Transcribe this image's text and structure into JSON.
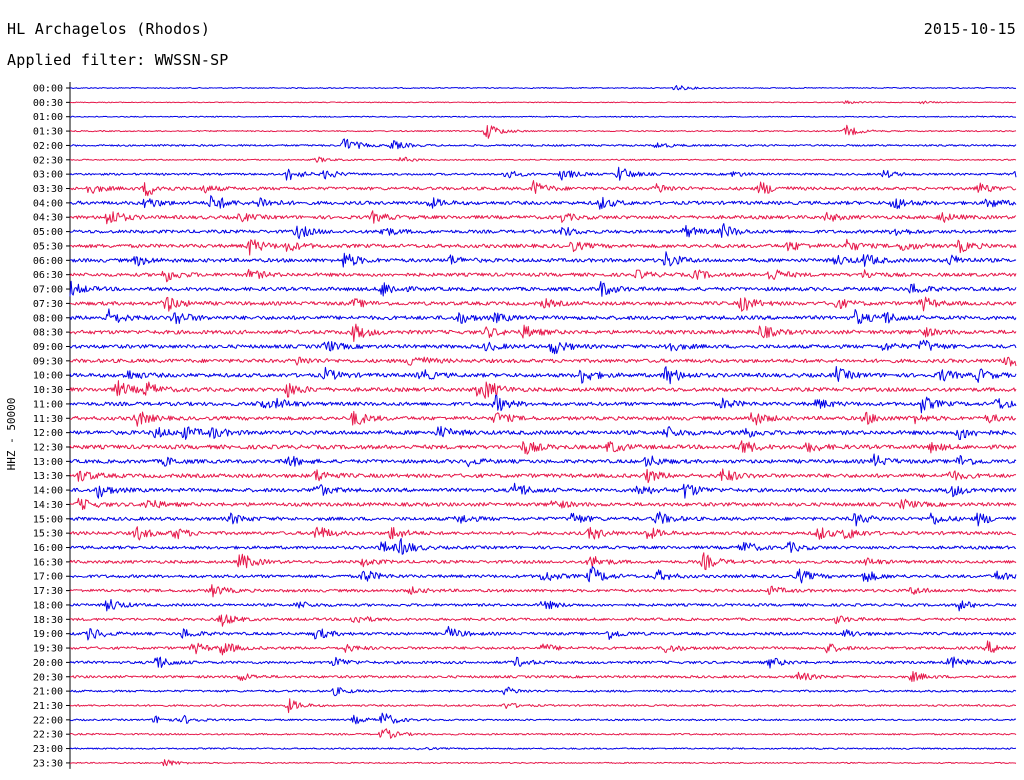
{
  "header": {
    "station": "HL Archagelos (Rhodos)",
    "date": "2015-10-15",
    "filter": "Applied filter: WWSSN-SP"
  },
  "colors": {
    "odd_trace": "#0000e6",
    "even_trace": "#e6194b",
    "axis": "#000000"
  },
  "chart_data": {
    "type": "line",
    "title": "HL Archagelos (Rhodos)",
    "date": "2015-10-15",
    "subtitle": "Applied filter: WWSSN-SP",
    "ylabel": "HHZ - 50000",
    "xlabel": "",
    "grid": false,
    "legend": "none",
    "rows": [
      "00:00",
      "00:30",
      "01:00",
      "01:30",
      "02:00",
      "02:30",
      "03:00",
      "03:30",
      "04:00",
      "04:30",
      "05:00",
      "05:30",
      "06:00",
      "06:30",
      "07:00",
      "07:30",
      "08:00",
      "08:30",
      "09:00",
      "09:30",
      "10:00",
      "10:30",
      "11:00",
      "11:30",
      "12:00",
      "12:30",
      "13:00",
      "13:30",
      "14:00",
      "14:30",
      "15:00",
      "15:30",
      "16:00",
      "16:30",
      "17:00",
      "17:30",
      "18:00",
      "18:30",
      "19:00",
      "19:30",
      "20:00",
      "20:30",
      "21:00",
      "21:30",
      "22:00",
      "22:30",
      "23:00",
      "23:30"
    ],
    "noise_level": [
      0.5,
      0.4,
      0.5,
      0.6,
      0.9,
      0.6,
      1.0,
      1.5,
      1.7,
      1.7,
      1.6,
      1.8,
      1.8,
      1.7,
      1.8,
      1.8,
      1.9,
      1.9,
      1.8,
      1.8,
      1.9,
      1.9,
      1.8,
      1.8,
      2.0,
      2.0,
      1.8,
      1.9,
      1.8,
      1.8,
      1.7,
      1.6,
      1.5,
      1.5,
      1.5,
      1.4,
      1.3,
      1.3,
      1.4,
      1.3,
      1.3,
      1.2,
      1.0,
      0.9,
      0.8,
      0.8,
      0.7,
      0.6
    ],
    "events": [
      [
        [
          0.64,
          3.0
        ]
      ],
      [
        [
          0.82,
          1.6
        ],
        [
          0.9,
          1.4
        ]
      ],
      [
        [
          0.96,
          0.8
        ]
      ],
      [
        [
          0.44,
          9.0
        ],
        [
          0.82,
          6.0
        ]
      ],
      [
        [
          0.29,
          8.0
        ],
        [
          0.34,
          5.0
        ],
        [
          0.62,
          3.0
        ]
      ],
      [
        [
          0.26,
          3.0
        ],
        [
          0.35,
          3.0
        ]
      ],
      [
        [
          0.23,
          7.0
        ],
        [
          0.27,
          5.0
        ],
        [
          0.46,
          4.5
        ],
        [
          0.52,
          6.0
        ],
        [
          0.58,
          8.0
        ],
        [
          0.7,
          3.0
        ],
        [
          0.86,
          4.0
        ],
        [
          1.0,
          6.0
        ]
      ],
      [
        [
          0.02,
          5.0
        ],
        [
          0.08,
          8.0
        ],
        [
          0.14,
          4.0
        ],
        [
          0.49,
          7.0
        ],
        [
          0.62,
          5.0
        ],
        [
          0.73,
          7.0
        ],
        [
          0.96,
          6.0
        ]
      ],
      [
        [
          0.08,
          6.0
        ],
        [
          0.15,
          9.0
        ],
        [
          0.2,
          6.0
        ],
        [
          0.38,
          5.0
        ],
        [
          0.56,
          6.0
        ],
        [
          0.87,
          7.0
        ],
        [
          0.97,
          5.0
        ]
      ],
      [
        [
          0.04,
          9.0
        ],
        [
          0.18,
          4.0
        ],
        [
          0.32,
          5.0
        ],
        [
          0.52,
          4.0
        ],
        [
          0.8,
          4.0
        ],
        [
          0.92,
          5.0
        ]
      ],
      [
        [
          0.24,
          7.0
        ],
        [
          0.33,
          5.0
        ],
        [
          0.52,
          5.0
        ],
        [
          0.65,
          6.0
        ],
        [
          0.69,
          7.0
        ],
        [
          0.87,
          5.0
        ]
      ],
      [
        [
          0.19,
          8.0
        ],
        [
          0.23,
          5.0
        ],
        [
          0.53,
          5.0
        ],
        [
          0.76,
          5.0
        ],
        [
          0.82,
          6.0
        ],
        [
          0.88,
          5.0
        ],
        [
          0.94,
          6.0
        ]
      ],
      [
        [
          0.07,
          5.0
        ],
        [
          0.29,
          8.0
        ],
        [
          0.4,
          5.0
        ],
        [
          0.63,
          8.0
        ],
        [
          0.81,
          5.0
        ],
        [
          0.84,
          6.0
        ],
        [
          0.93,
          5.0
        ]
      ],
      [
        [
          0.1,
          7.0
        ],
        [
          0.19,
          5.0
        ],
        [
          0.6,
          4.0
        ],
        [
          0.66,
          5.0
        ],
        [
          0.74,
          7.0
        ],
        [
          0.84,
          4.0
        ]
      ],
      [
        [
          0.0,
          7.0
        ],
        [
          0.33,
          8.0
        ],
        [
          0.56,
          8.0
        ],
        [
          0.89,
          6.0
        ]
      ],
      [
        [
          0.1,
          9.0
        ],
        [
          0.3,
          4.0
        ],
        [
          0.5,
          4.0
        ],
        [
          0.71,
          8.0
        ],
        [
          0.81,
          5.0
        ],
        [
          0.9,
          7.0
        ]
      ],
      [
        [
          0.04,
          8.0
        ],
        [
          0.11,
          8.0
        ],
        [
          0.41,
          6.0
        ],
        [
          0.45,
          4.0
        ],
        [
          0.83,
          7.0
        ],
        [
          0.86,
          6.0
        ]
      ],
      [
        [
          0.3,
          8.0
        ],
        [
          0.44,
          5.0
        ],
        [
          0.48,
          6.0
        ],
        [
          0.73,
          7.0
        ],
        [
          0.9,
          5.0
        ]
      ],
      [
        [
          0.27,
          6.0
        ],
        [
          0.44,
          4.0
        ],
        [
          0.51,
          8.0
        ],
        [
          0.63,
          6.0
        ],
        [
          0.86,
          4.0
        ],
        [
          0.9,
          7.0
        ]
      ],
      [
        [
          0.24,
          4.0
        ],
        [
          0.36,
          8.0
        ],
        [
          0.99,
          8.0
        ]
      ],
      [
        [
          0.06,
          5.0
        ],
        [
          0.27,
          6.0
        ],
        [
          0.37,
          6.0
        ],
        [
          0.54,
          8.0
        ],
        [
          0.63,
          10.0
        ],
        [
          0.81,
          7.0
        ],
        [
          0.92,
          6.0
        ],
        [
          0.96,
          6.0
        ]
      ],
      [
        [
          0.05,
          8.0
        ],
        [
          0.08,
          7.0
        ],
        [
          0.23,
          7.0
        ],
        [
          0.43,
          5.0
        ],
        [
          0.44,
          7.0
        ]
      ],
      [
        [
          0.2,
          5.0
        ],
        [
          0.22,
          4.0
        ],
        [
          0.45,
          8.0
        ],
        [
          0.69,
          5.0
        ],
        [
          0.79,
          5.0
        ],
        [
          0.9,
          8.0
        ],
        [
          0.98,
          6.0
        ]
      ],
      [
        [
          0.07,
          8.0
        ],
        [
          0.3,
          8.0
        ],
        [
          0.45,
          6.0
        ],
        [
          0.72,
          8.0
        ],
        [
          0.84,
          6.0
        ],
        [
          0.89,
          5.0
        ],
        [
          0.97,
          4.0
        ]
      ],
      [
        [
          0.09,
          5.0
        ],
        [
          0.12,
          6.0
        ],
        [
          0.15,
          5.0
        ],
        [
          0.39,
          6.0
        ],
        [
          0.63,
          6.0
        ],
        [
          0.71,
          6.0
        ],
        [
          0.94,
          7.0
        ]
      ],
      [
        [
          0.48,
          7.0
        ],
        [
          0.57,
          6.0
        ],
        [
          0.71,
          7.0
        ],
        [
          0.78,
          5.0
        ],
        [
          0.91,
          4.0
        ]
      ],
      [
        [
          0.1,
          4.0
        ],
        [
          0.23,
          6.0
        ],
        [
          0.42,
          4.0
        ],
        [
          0.61,
          6.0
        ],
        [
          0.85,
          6.0
        ],
        [
          0.94,
          6.0
        ]
      ],
      [
        [
          0.01,
          6.0
        ],
        [
          0.26,
          6.0
        ],
        [
          0.61,
          6.0
        ],
        [
          0.69,
          7.0
        ],
        [
          0.93,
          5.0
        ]
      ],
      [
        [
          0.03,
          7.0
        ],
        [
          0.26,
          7.0
        ],
        [
          0.47,
          8.0
        ],
        [
          0.6,
          6.0
        ],
        [
          0.65,
          8.0
        ],
        [
          0.93,
          7.0
        ]
      ],
      [
        [
          0.01,
          6.0
        ],
        [
          0.08,
          6.0
        ],
        [
          0.51,
          5.0
        ],
        [
          0.88,
          5.0
        ]
      ],
      [
        [
          0.17,
          5.0
        ],
        [
          0.41,
          5.0
        ],
        [
          0.53,
          6.0
        ],
        [
          0.62,
          7.0
        ],
        [
          0.83,
          6.0
        ],
        [
          0.91,
          6.0
        ],
        [
          0.96,
          6.0
        ]
      ],
      [
        [
          0.07,
          7.0
        ],
        [
          0.11,
          6.0
        ],
        [
          0.26,
          8.0
        ],
        [
          0.34,
          7.0
        ],
        [
          0.55,
          7.0
        ],
        [
          0.61,
          6.0
        ],
        [
          0.79,
          7.0
        ],
        [
          0.82,
          6.0
        ]
      ],
      [
        [
          0.33,
          6.0
        ],
        [
          0.35,
          7.0
        ],
        [
          0.71,
          7.0
        ],
        [
          0.76,
          5.0
        ]
      ],
      [
        [
          0.18,
          9.0
        ],
        [
          0.31,
          4.0
        ],
        [
          0.55,
          7.0
        ],
        [
          0.67,
          8.0
        ],
        [
          0.84,
          4.0
        ]
      ],
      [
        [
          0.31,
          7.0
        ],
        [
          0.5,
          6.0
        ],
        [
          0.55,
          10.0
        ],
        [
          0.62,
          6.0
        ],
        [
          0.77,
          7.0
        ],
        [
          0.84,
          6.0
        ],
        [
          0.98,
          5.0
        ]
      ],
      [
        [
          0.15,
          6.0
        ],
        [
          0.36,
          3.0
        ],
        [
          0.74,
          4.0
        ],
        [
          0.89,
          4.0
        ]
      ],
      [
        [
          0.04,
          7.0
        ],
        [
          0.24,
          4.0
        ],
        [
          0.5,
          5.0
        ],
        [
          0.94,
          5.0
        ]
      ],
      [
        [
          0.16,
          7.0
        ],
        [
          0.3,
          5.0
        ],
        [
          0.81,
          4.0
        ]
      ],
      [
        [
          0.02,
          7.0
        ],
        [
          0.12,
          5.0
        ],
        [
          0.26,
          6.0
        ],
        [
          0.4,
          6.0
        ],
        [
          0.57,
          5.0
        ],
        [
          0.82,
          4.0
        ]
      ],
      [
        [
          0.13,
          6.0
        ],
        [
          0.16,
          7.0
        ],
        [
          0.29,
          4.0
        ],
        [
          0.5,
          4.0
        ],
        [
          0.63,
          5.0
        ],
        [
          0.8,
          5.0
        ],
        [
          0.97,
          6.0
        ]
      ],
      [
        [
          0.09,
          8.0
        ],
        [
          0.28,
          5.0
        ],
        [
          0.47,
          5.0
        ],
        [
          0.74,
          5.0
        ],
        [
          0.93,
          6.0
        ]
      ],
      [
        [
          0.18,
          4.0
        ],
        [
          0.77,
          5.0
        ],
        [
          0.89,
          5.0
        ]
      ],
      [
        [
          0.28,
          4.0
        ],
        [
          0.46,
          4.0
        ]
      ],
      [
        [
          0.23,
          7.0
        ],
        [
          0.46,
          3.0
        ]
      ],
      [
        [
          0.09,
          4.0
        ],
        [
          0.12,
          4.0
        ],
        [
          0.3,
          4.0
        ],
        [
          0.33,
          8.0
        ]
      ],
      [
        [
          0.33,
          7.0
        ]
      ],
      [
        [
          0.37,
          1.5
        ]
      ],
      [
        [
          0.1,
          4.0
        ]
      ]
    ]
  }
}
